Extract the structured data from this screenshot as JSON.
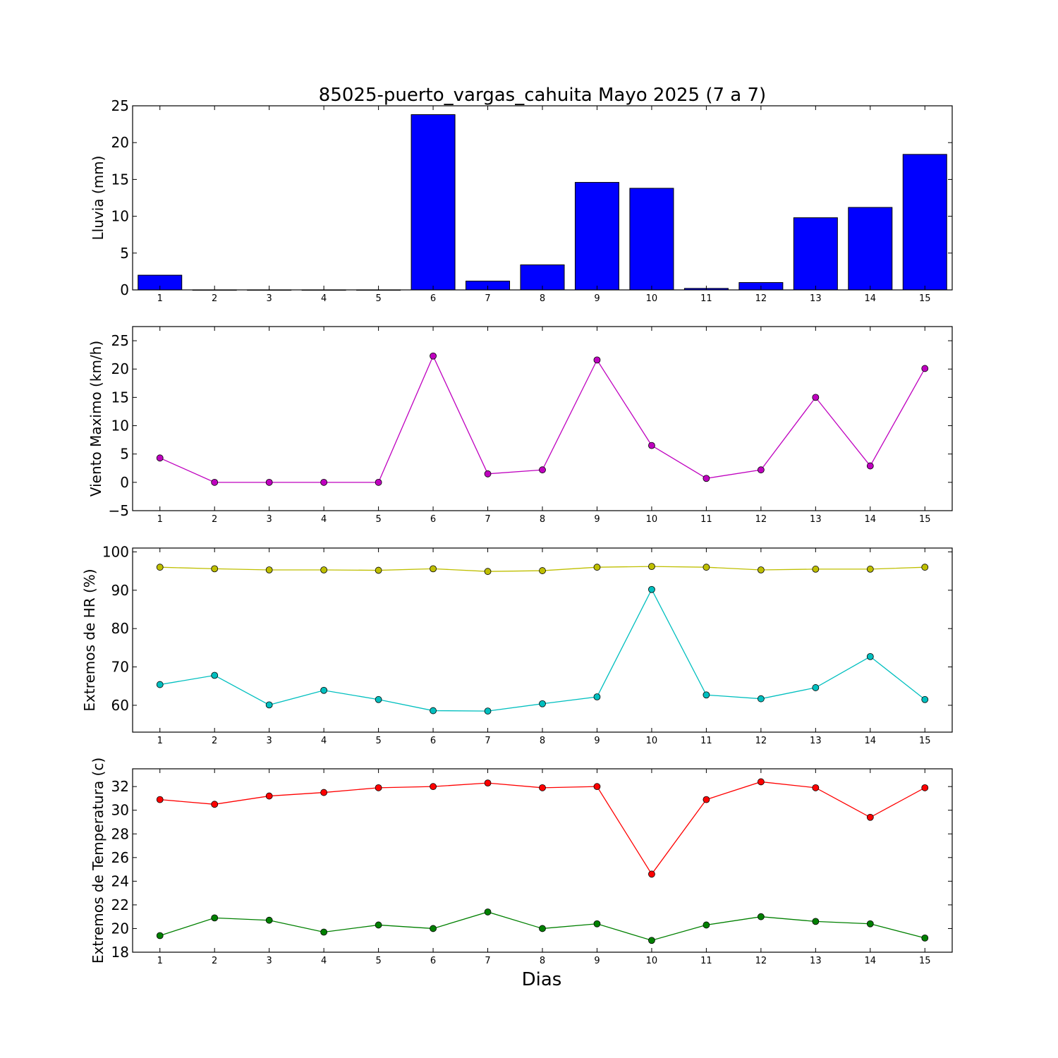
{
  "title": "85025-puerto_vargas_cahuita Mayo 2025  (7 a 7)",
  "xlabel": "Dias",
  "chart_data": [
    {
      "type": "bar",
      "ylabel": "Lluvia (mm)",
      "x": [
        1,
        2,
        3,
        4,
        5,
        6,
        7,
        8,
        9,
        10,
        11,
        12,
        13,
        14,
        15
      ],
      "ylim": [
        0,
        25
      ],
      "yticks": [
        0,
        5,
        10,
        15,
        20,
        25
      ],
      "series": [
        {
          "values": [
            2.0,
            0,
            0,
            0,
            0,
            23.8,
            1.2,
            3.4,
            14.6,
            13.8,
            0.2,
            1.0,
            9.8,
            11.2,
            18.4
          ],
          "color": "#0000ff"
        }
      ]
    },
    {
      "type": "line",
      "ylabel": "Viento Maximo (km/h)",
      "x": [
        1,
        2,
        3,
        4,
        5,
        6,
        7,
        8,
        9,
        10,
        11,
        12,
        13,
        14,
        15
      ],
      "ylim": [
        -5,
        27.5
      ],
      "yticks": [
        -5,
        0,
        5,
        10,
        15,
        20,
        25
      ],
      "series": [
        {
          "values": [
            4.3,
            0,
            0,
            0,
            0,
            22.3,
            1.5,
            2.2,
            21.6,
            6.5,
            0.7,
            2.2,
            15.0,
            2.9,
            20.1
          ],
          "color": "#bf00bf"
        }
      ]
    },
    {
      "type": "line",
      "ylabel": "Extremos de HR (%)",
      "x": [
        1,
        2,
        3,
        4,
        5,
        6,
        7,
        8,
        9,
        10,
        11,
        12,
        13,
        14,
        15
      ],
      "ylim": [
        53,
        101
      ],
      "yticks": [
        60,
        70,
        80,
        90,
        100
      ],
      "series": [
        {
          "values": [
            96.0,
            95.6,
            95.3,
            95.3,
            95.2,
            95.6,
            94.9,
            95.1,
            96.0,
            96.2,
            96.0,
            95.3,
            95.5,
            95.5,
            96.0
          ],
          "color": "#bfbf00"
        },
        {
          "values": [
            65.4,
            67.8,
            60.1,
            63.9,
            61.5,
            58.6,
            58.5,
            60.4,
            62.2,
            90.2,
            62.7,
            61.7,
            64.6,
            72.7,
            61.5
          ],
          "color": "#00bfbf"
        }
      ]
    },
    {
      "type": "line",
      "ylabel": "Extremos de Temperatura (c)",
      "x": [
        1,
        2,
        3,
        4,
        5,
        6,
        7,
        8,
        9,
        10,
        11,
        12,
        13,
        14,
        15
      ],
      "ylim": [
        18,
        33.5
      ],
      "yticks": [
        18,
        20,
        22,
        24,
        26,
        28,
        30,
        32
      ],
      "series": [
        {
          "values": [
            30.9,
            30.5,
            31.2,
            31.5,
            31.9,
            32.0,
            32.3,
            31.9,
            32.0,
            24.6,
            30.9,
            32.4,
            31.9,
            29.4,
            31.9
          ],
          "color": "#ff0000"
        },
        {
          "values": [
            19.4,
            20.9,
            20.7,
            19.7,
            20.3,
            20.0,
            21.4,
            20.0,
            20.4,
            19.0,
            20.3,
            21.0,
            20.6,
            20.4,
            19.2
          ],
          "color": "#008000"
        }
      ]
    }
  ]
}
